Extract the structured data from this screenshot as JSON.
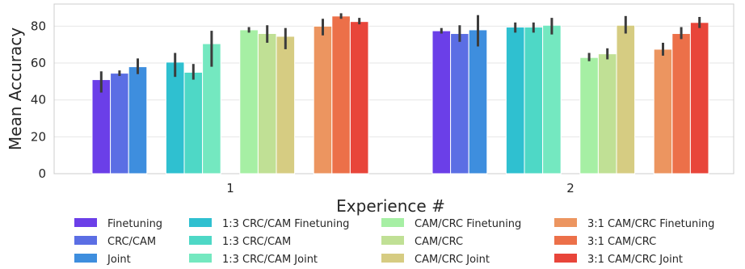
{
  "chart_data": {
    "type": "bar",
    "xlabel": "Experience #",
    "ylabel": "Mean Accuracy",
    "ylim": [
      0,
      92
    ],
    "yticks": [
      0,
      20,
      40,
      60,
      80
    ],
    "categories": [
      "1",
      "2"
    ],
    "grid": true,
    "legend_position": "bottom",
    "groups": [
      [
        "Finetuning",
        "CRC/CAM",
        "Joint"
      ],
      [
        "1:3 CRC/CAM Finetuning",
        "1:3 CRC/CAM",
        "1:3 CRC/CAM Joint"
      ],
      [
        "CAM/CRC Finetuning",
        "CAM/CRC",
        "CAM/CRC Joint"
      ],
      [
        "3:1 CAM/CRC Finetuning",
        "3:1 CAM/CRC",
        "3:1 CAM/CRC Joint"
      ]
    ],
    "series": [
      {
        "name": "Finetuning",
        "color": "#6b3fe8",
        "values": [
          51,
          77.5
        ],
        "err_low": [
          44,
          76
        ],
        "err_high": [
          55.5,
          79
        ]
      },
      {
        "name": "CRC/CAM",
        "color": "#5b6ee4",
        "values": [
          54.5,
          76
        ],
        "err_low": [
          53,
          71.5
        ],
        "err_high": [
          56,
          80.5
        ]
      },
      {
        "name": "Joint",
        "color": "#3e8ede",
        "values": [
          58,
          78
        ],
        "err_low": [
          54,
          69
        ],
        "err_high": [
          62.5,
          86
        ]
      },
      {
        "name": "1:3 CRC/CAM Finetuning",
        "color": "#2fc0d0",
        "values": [
          60.5,
          79.5
        ],
        "err_low": [
          52.5,
          76.5
        ],
        "err_high": [
          65.5,
          82
        ]
      },
      {
        "name": "1:3 CRC/CAM",
        "color": "#4ed8c6",
        "values": [
          55,
          79.5
        ],
        "err_low": [
          51,
          76.5
        ],
        "err_high": [
          59.5,
          82
        ]
      },
      {
        "name": "1:3 CRC/CAM Joint",
        "color": "#74e8c0",
        "values": [
          70.5,
          80.5
        ],
        "err_low": [
          58,
          75.5
        ],
        "err_high": [
          77.5,
          84.5
        ]
      },
      {
        "name": "CAM/CRC Finetuning",
        "color": "#a6efa4",
        "values": [
          78,
          63
        ],
        "err_low": [
          76.5,
          61
        ],
        "err_high": [
          79.5,
          65.5
        ]
      },
      {
        "name": "CAM/CRC",
        "color": "#c0e095",
        "values": [
          76,
          65
        ],
        "err_low": [
          71,
          62
        ],
        "err_high": [
          80.5,
          68
        ]
      },
      {
        "name": "CAM/CRC Joint",
        "color": "#d6cc82",
        "values": [
          74.5,
          80.5
        ],
        "err_low": [
          67.5,
          76
        ],
        "err_high": [
          79,
          85.5
        ]
      },
      {
        "name": "3:1 CAM/CRC Finetuning",
        "color": "#ec9560",
        "values": [
          80,
          67.5
        ],
        "err_low": [
          75,
          64
        ],
        "err_high": [
          84,
          71
        ]
      },
      {
        "name": "3:1 CAM/CRC",
        "color": "#ec7049",
        "values": [
          85.5,
          76
        ],
        "err_low": [
          84,
          73
        ],
        "err_high": [
          87,
          79.5
        ]
      },
      {
        "name": "3:1 CAM/CRC Joint",
        "color": "#e8453a",
        "values": [
          82.5,
          82
        ],
        "err_low": [
          81,
          79
        ],
        "err_high": [
          84.5,
          85
        ]
      }
    ]
  }
}
